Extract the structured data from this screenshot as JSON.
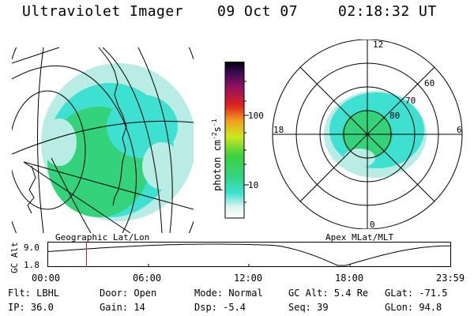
{
  "header": {
    "title": "Ultraviolet Imager",
    "date": "09 Oct 07",
    "time": "02:18:32 UT"
  },
  "colorbar": {
    "ticks": [
      "100",
      "10"
    ],
    "unit_main": "photon cm",
    "unit_exp1": "-2",
    "unit_s": "s",
    "unit_exp2": "-1"
  },
  "left_panel": {
    "caption": "Geographic Lat/Lon"
  },
  "right_panel": {
    "caption": "Apex MLat/MLT",
    "mlt_labels": {
      "top": "12",
      "right": "6",
      "bottom": "0",
      "left": "18"
    },
    "mlat_labels": [
      "60",
      "70",
      "80"
    ]
  },
  "altitude_plot": {
    "ylabel": "GC Alt",
    "ytick_top": "9.0",
    "ytick_bottom": "1.8",
    "xticks": [
      "00:00",
      "06:00",
      "12:00",
      "18:00",
      "23:59"
    ],
    "marker_time_fraction": 0.097,
    "curve_min_fraction": 0.74
  },
  "info": {
    "flt": "Flt: LBHL",
    "ip": "IP: 36.0",
    "door": "Door: Open",
    "gain": "Gain: 14",
    "mode": "Mode: Normal",
    "dsp": "Dsp:   -5.4",
    "gcalt": "GC Alt: 5.4 Re",
    "seq": "Seq: 39",
    "glat": "GLat: -71.5",
    "glon": "GLon:  94.8"
  },
  "colors": {
    "aurora_green": "#34d27a",
    "aurora_cyan": "#3ee0d2",
    "aurora_light": "#b8ece4",
    "marker_red": "#cc2222"
  }
}
